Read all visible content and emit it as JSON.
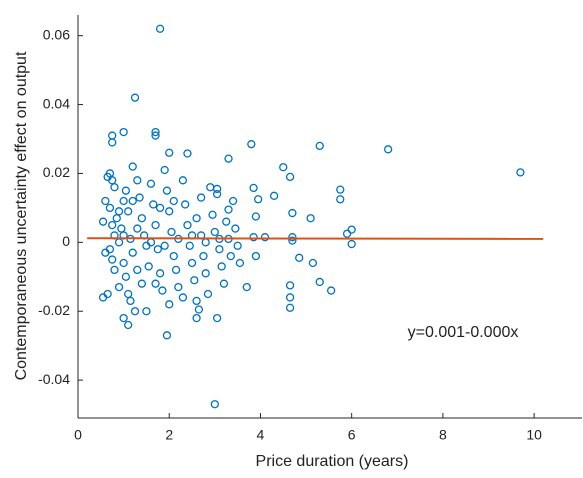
{
  "chart_data": {
    "type": "scatter",
    "x_label": "Price duration (years)",
    "y_label": "Contemporaneous uncertainty effect on output",
    "annotation": "y=0.001-0.000x",
    "color": "#0072bd",
    "x": [
      1.8,
      1.25,
      0.75,
      0.75,
      1.0,
      1.7,
      1.7,
      3.0,
      1.95,
      9.7,
      6.8,
      5.3,
      3.8,
      2.0,
      2.4,
      3.3,
      4.5,
      4.65,
      5.75,
      5.75,
      6.0,
      6.0,
      5.9,
      5.1,
      4.7,
      4.7,
      4.7,
      4.85,
      5.15,
      5.3,
      5.55,
      4.65,
      4.65,
      4.65,
      3.7,
      3.05,
      2.65,
      2.6,
      1.0,
      1.1,
      0.55,
      0.65,
      3.55,
      3.9,
      4.1,
      3.85,
      3.95,
      4.3,
      3.85,
      3.05,
      3.05,
      3.3,
      3.9,
      0.6,
      0.65,
      0.7,
      0.75,
      0.8,
      0.7,
      0.75,
      0.8,
      0.7,
      0.75,
      0.8,
      0.9,
      0.85,
      0.9,
      0.95,
      1.0,
      1.05,
      1.1,
      1.15,
      1.2,
      1.0,
      1.05,
      1.1,
      1.25,
      1.2,
      1.3,
      1.35,
      1.4,
      1.45,
      1.5,
      1.55,
      1.4,
      1.5,
      1.6,
      1.65,
      1.7,
      1.75,
      1.8,
      1.85,
      1.9,
      1.95,
      2.0,
      2.05,
      2.1,
      2.15,
      2.2,
      2.3,
      2.35,
      2.4,
      2.45,
      2.5,
      2.55,
      2.6,
      2.7,
      2.75,
      2.8,
      2.85,
      2.9,
      2.95,
      3.0,
      3.1,
      3.15,
      3.2,
      3.25,
      3.3,
      3.35,
      1.0,
      1.3,
      1.6,
      1.9,
      2.2,
      2.5,
      2.8,
      3.1,
      0.9,
      1.2,
      1.8,
      2.1,
      2.6,
      2.3,
      1.3,
      1.7,
      0.6,
      0.55,
      3.45,
      3.5,
      3.4,
      2.0,
      1.15,
      2.7
    ],
    "values": [
      0.062,
      0.042,
      0.031,
      0.029,
      0.032,
      0.032,
      0.031,
      -0.047,
      -0.027,
      0.0203,
      0.027,
      0.028,
      0.0285,
      0.026,
      0.0258,
      0.0243,
      0.0218,
      0.019,
      0.0153,
      0.0125,
      0.0037,
      -0.0005,
      0.0025,
      0.007,
      0.0085,
      0.0015,
      0.0005,
      -0.0045,
      -0.006,
      -0.0115,
      -0.014,
      -0.0125,
      -0.016,
      -0.019,
      -0.013,
      -0.022,
      -0.0195,
      -0.022,
      -0.022,
      -0.024,
      -0.016,
      -0.015,
      -0.006,
      -0.004,
      0.0015,
      0.0015,
      0.0125,
      0.0135,
      0.0158,
      0.0155,
      0.014,
      0.0095,
      0.0075,
      0.012,
      0.019,
      0.02,
      0.018,
      0.016,
      0.01,
      0.005,
      0.002,
      -0.002,
      -0.005,
      -0.008,
      -0.013,
      0.007,
      0.0,
      0.004,
      0.012,
      0.015,
      0.009,
      0.001,
      -0.003,
      -0.006,
      -0.01,
      -0.015,
      -0.02,
      0.022,
      0.018,
      0.013,
      0.007,
      0.002,
      -0.001,
      -0.007,
      -0.012,
      -0.02,
      0.017,
      0.011,
      0.005,
      -0.002,
      -0.009,
      -0.014,
      0.021,
      0.015,
      0.009,
      0.003,
      -0.004,
      -0.008,
      -0.013,
      0.018,
      0.011,
      0.005,
      -0.001,
      -0.006,
      -0.011,
      0.007,
      0.002,
      -0.004,
      -0.009,
      -0.015,
      0.016,
      0.008,
      0.003,
      -0.002,
      -0.007,
      -0.012,
      0.006,
      0.001,
      -0.004,
      0.002,
      0.004,
      0.0,
      -0.001,
      0.001,
      0.002,
      0.0,
      0.001,
      0.009,
      0.012,
      0.01,
      0.012,
      -0.017,
      -0.016,
      -0.008,
      -0.012,
      -0.003,
      0.006,
      0.004,
      -0.001,
      0.012,
      -0.018,
      -0.017,
      0.013
    ],
    "fit_line": {
      "x": [
        0.2,
        10.2
      ],
      "y": [
        0.0012,
        0.001
      ],
      "color": "#d95319"
    },
    "xlim": [
      0,
      11.05
    ],
    "ylim": [
      -0.051,
      0.066
    ],
    "xticks": [
      0,
      2,
      4,
      6,
      8,
      10
    ],
    "yticks": [
      -0.04,
      -0.02,
      0,
      0.02,
      0.04,
      0.06
    ]
  }
}
